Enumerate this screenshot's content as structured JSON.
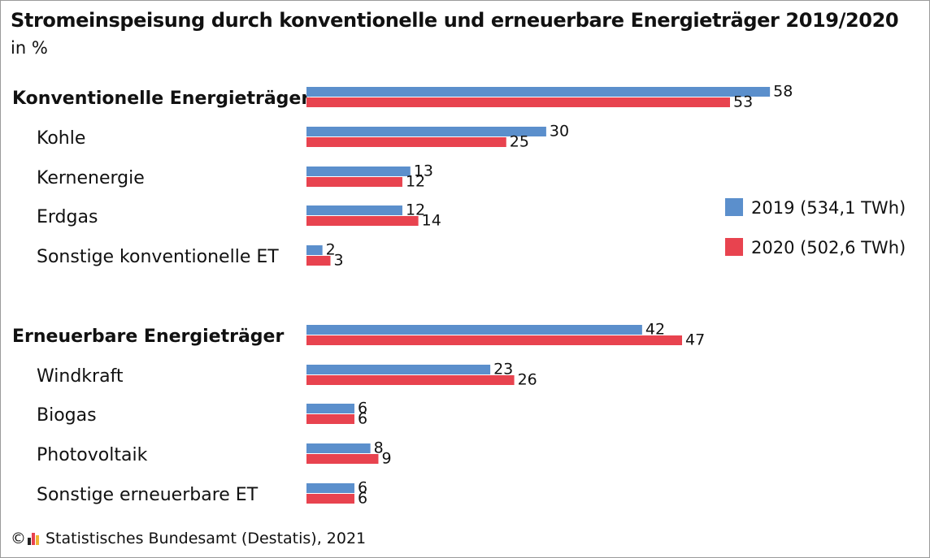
{
  "chart_data": {
    "type": "bar",
    "orientation": "horizontal",
    "title": "Stromeinspeisung durch konventionelle und erneuerbare Energieträger 2019/2020",
    "subtitle": "in %",
    "legend_placement": "right",
    "grid": false,
    "xlim": [
      0,
      58
    ],
    "series": [
      {
        "name": "2019 (534,1 TWh)",
        "color": "#5b8fcc"
      },
      {
        "name": "2020 (502,6 TWh)",
        "color": "#e8434f"
      }
    ],
    "categories": [
      {
        "label": "Konventionelle Energieträger",
        "bold": true,
        "values": [
          58,
          53
        ]
      },
      {
        "label": "Kohle",
        "bold": false,
        "values": [
          30,
          25
        ]
      },
      {
        "label": "Kernenergie",
        "bold": false,
        "values": [
          13,
          12
        ]
      },
      {
        "label": "Erdgas",
        "bold": false,
        "values": [
          12,
          14
        ]
      },
      {
        "label": "Sonstige konventionelle ET",
        "bold": false,
        "values": [
          2,
          3
        ]
      },
      {
        "label": "Erneuerbare Energieträger",
        "bold": true,
        "values": [
          42,
          47
        ]
      },
      {
        "label": "Windkraft",
        "bold": false,
        "values": [
          23,
          26
        ]
      },
      {
        "label": "Biogas",
        "bold": false,
        "values": [
          6,
          6
        ]
      },
      {
        "label": "Photovoltaik",
        "bold": false,
        "values": [
          8,
          9
        ]
      },
      {
        "label": "Sonstige erneuerbare ET",
        "bold": false,
        "values": [
          6,
          6
        ]
      }
    ]
  },
  "footer": {
    "copyright_symbol": "©",
    "source": "Statistisches Bundesamt (Destatis), 2021",
    "logo_icon": "destatis-logo-icon"
  }
}
